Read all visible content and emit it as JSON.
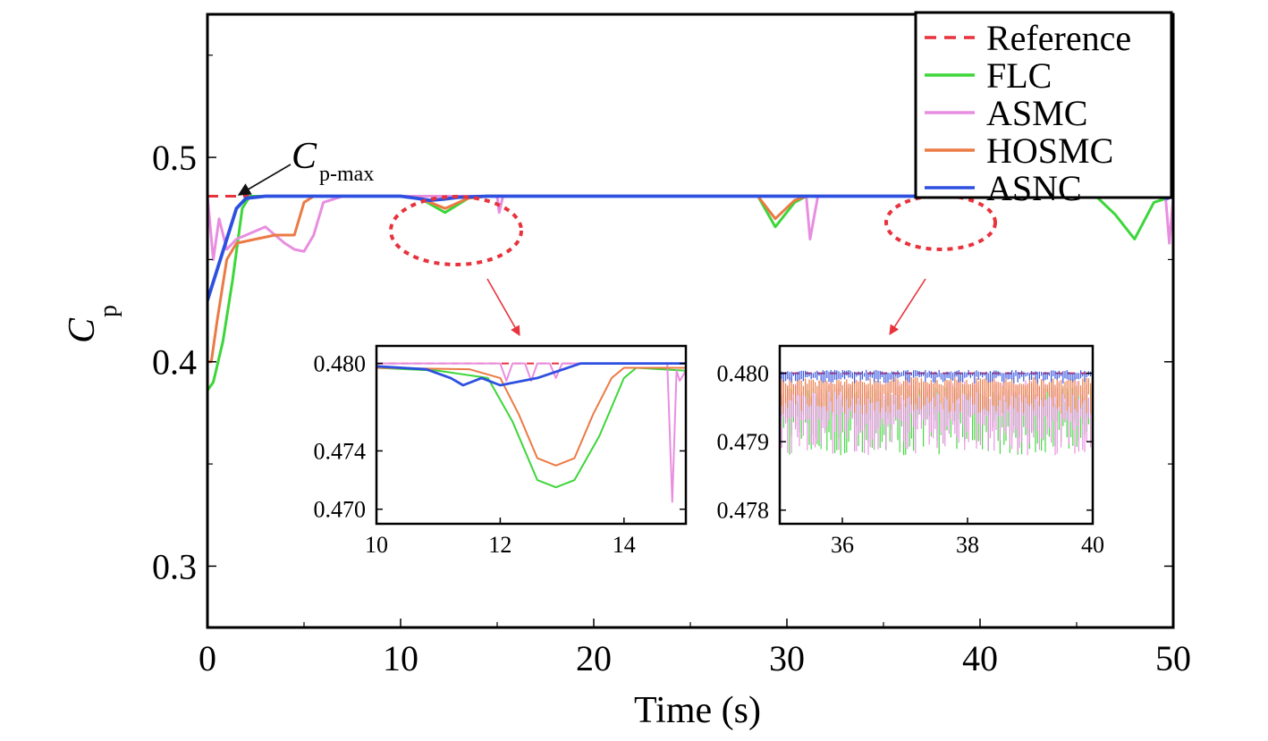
{
  "chart_data": [
    {
      "type": "line",
      "xlabel": "Time (s)",
      "ylabel": "C",
      "ylabel_sub": "p",
      "xlim": [
        0,
        50
      ],
      "ylim": [
        0.27,
        0.57
      ],
      "xticks": [
        0,
        10,
        20,
        30,
        40,
        50
      ],
      "xtick_labels": [
        "0",
        "10",
        "20",
        "30",
        "40",
        "50"
      ],
      "yticks": [
        0.3,
        0.4,
        0.5
      ],
      "ytick_labels": [
        "0.3",
        "0.4",
        "0.5"
      ],
      "grid": false,
      "legend_position": "top-right",
      "annotation": {
        "text": "C",
        "sub": "p-max",
        "points_to": [
          1.5,
          0.49
        ]
      },
      "series": [
        {
          "name": "Reference",
          "color": "#e8323c",
          "dash": true,
          "x": [
            0,
            50
          ],
          "y": [
            0.481,
            0.481
          ]
        },
        {
          "name": "FLC",
          "color": "#3dd63a",
          "x": [
            0,
            0.3,
            0.8,
            1.3,
            1.8,
            2.2,
            2.5,
            10,
            11,
            12.3,
            13.5,
            14.5,
            28.5,
            29.4,
            30.4,
            31,
            46,
            47,
            48,
            49,
            50
          ],
          "y": [
            0.386,
            0.39,
            0.41,
            0.44,
            0.475,
            0.481,
            0.481,
            0.481,
            0.48,
            0.473,
            0.48,
            0.481,
            0.481,
            0.466,
            0.478,
            0.481,
            0.481,
            0.472,
            0.46,
            0.478,
            0.481
          ]
        },
        {
          "name": "ASMC",
          "color": "#e88ee0",
          "x": [
            0,
            0.3,
            0.6,
            1.0,
            1.5,
            2.0,
            2.5,
            3.0,
            3.5,
            4.0,
            4.5,
            5.0,
            5.5,
            6.0,
            7,
            10,
            15,
            15.1,
            15.3,
            20,
            31,
            31.2,
            31.6,
            40,
            48,
            49.6,
            49.8,
            50
          ],
          "y": [
            0.481,
            0.45,
            0.47,
            0.455,
            0.46,
            0.462,
            0.464,
            0.466,
            0.462,
            0.458,
            0.455,
            0.454,
            0.462,
            0.478,
            0.481,
            0.481,
            0.481,
            0.473,
            0.481,
            0.481,
            0.481,
            0.46,
            0.481,
            0.481,
            0.481,
            0.481,
            0.458,
            0.481
          ]
        },
        {
          "name": "HOSMC",
          "color": "#ec7a45",
          "x": [
            0,
            0.2,
            0.5,
            1.0,
            1.5,
            2.5,
            3.5,
            4.5,
            5.0,
            5.5,
            10,
            11,
            12.3,
            13.5,
            14.5,
            28.5,
            29.4,
            30.4,
            31,
            50
          ],
          "y": [
            0.4,
            0.4,
            0.42,
            0.45,
            0.458,
            0.46,
            0.462,
            0.462,
            0.478,
            0.481,
            0.481,
            0.48,
            0.475,
            0.48,
            0.481,
            0.481,
            0.47,
            0.479,
            0.481,
            0.481
          ]
        },
        {
          "name": "ASNC",
          "color": "#2d50e0",
          "x": [
            0,
            0.5,
            1.0,
            1.5,
            2.0,
            3.0,
            10,
            10.8,
            11.5,
            12.2,
            13.0,
            14.5,
            49.2,
            49.7,
            50
          ],
          "y": [
            0.43,
            0.445,
            0.46,
            0.475,
            0.48,
            0.481,
            0.481,
            0.48,
            0.479,
            0.4795,
            0.4805,
            0.481,
            0.481,
            0.48,
            0.481
          ]
        }
      ]
    },
    {
      "type": "line",
      "xlim": [
        10,
        15
      ],
      "ylim": [
        0.469,
        0.4812
      ],
      "xticks": [
        10,
        12,
        14
      ],
      "xtick_labels": [
        "10",
        "12",
        "14"
      ],
      "yticks": [
        0.47,
        0.474,
        0.48
      ],
      "ytick_labels": [
        "0.470",
        "0.474",
        "0.480"
      ],
      "series": [
        {
          "name": "Reference",
          "x": [
            10,
            15
          ],
          "y": [
            0.48,
            0.48
          ]
        },
        {
          "name": "FLC",
          "x": [
            10,
            11,
            11.8,
            12.2,
            12.6,
            12.9,
            13.2,
            13.6,
            14.0,
            14.2,
            15
          ],
          "y": [
            0.4797,
            0.4795,
            0.479,
            0.476,
            0.472,
            0.4715,
            0.472,
            0.475,
            0.479,
            0.4797,
            0.4795
          ]
        },
        {
          "name": "ASMC",
          "x": [
            10,
            12.0,
            12.1,
            12.2,
            12.4,
            12.5,
            12.6,
            12.8,
            12.9,
            13.0,
            14.0,
            14.7,
            14.78,
            14.85,
            14.9,
            15
          ],
          "y": [
            0.48,
            0.48,
            0.4788,
            0.48,
            0.48,
            0.4788,
            0.48,
            0.48,
            0.479,
            0.48,
            0.48,
            0.48,
            0.4705,
            0.4795,
            0.4788,
            0.4795
          ]
        },
        {
          "name": "HOSMC",
          "x": [
            10,
            11.5,
            12.0,
            12.3,
            12.6,
            12.9,
            13.2,
            13.5,
            13.8,
            14,
            15
          ],
          "y": [
            0.4797,
            0.4796,
            0.479,
            0.4765,
            0.4735,
            0.473,
            0.4735,
            0.4765,
            0.479,
            0.4797,
            0.4797
          ]
        },
        {
          "name": "ASNC",
          "x": [
            10,
            10.8,
            11.2,
            11.4,
            11.7,
            12.0,
            12.6,
            13.3,
            14,
            15
          ],
          "y": [
            0.4798,
            0.4796,
            0.479,
            0.4785,
            0.479,
            0.4785,
            0.479,
            0.48,
            0.48,
            0.48
          ]
        }
      ]
    },
    {
      "type": "line",
      "xlim": [
        35,
        40
      ],
      "ylim": [
        0.4778,
        0.4804
      ],
      "xticks": [
        36,
        38,
        40
      ],
      "xtick_labels": [
        "36",
        "38",
        "40"
      ],
      "yticks": [
        0.478,
        0.479,
        0.48
      ],
      "ytick_labels": [
        "0.478",
        "0.479",
        "0.480"
      ],
      "series": [
        {
          "name": "Reference",
          "x": [
            35,
            40
          ],
          "y": [
            0.48,
            0.48
          ]
        },
        {
          "name": "FLC",
          "band": [
            0.4788,
            0.4798
          ]
        },
        {
          "name": "ASMC",
          "band": [
            0.4788,
            0.4799
          ]
        },
        {
          "name": "HOSMC",
          "band": [
            0.4794,
            0.47995
          ]
        },
        {
          "name": "ASNC",
          "band": [
            0.47985,
            0.48005
          ]
        }
      ]
    }
  ]
}
